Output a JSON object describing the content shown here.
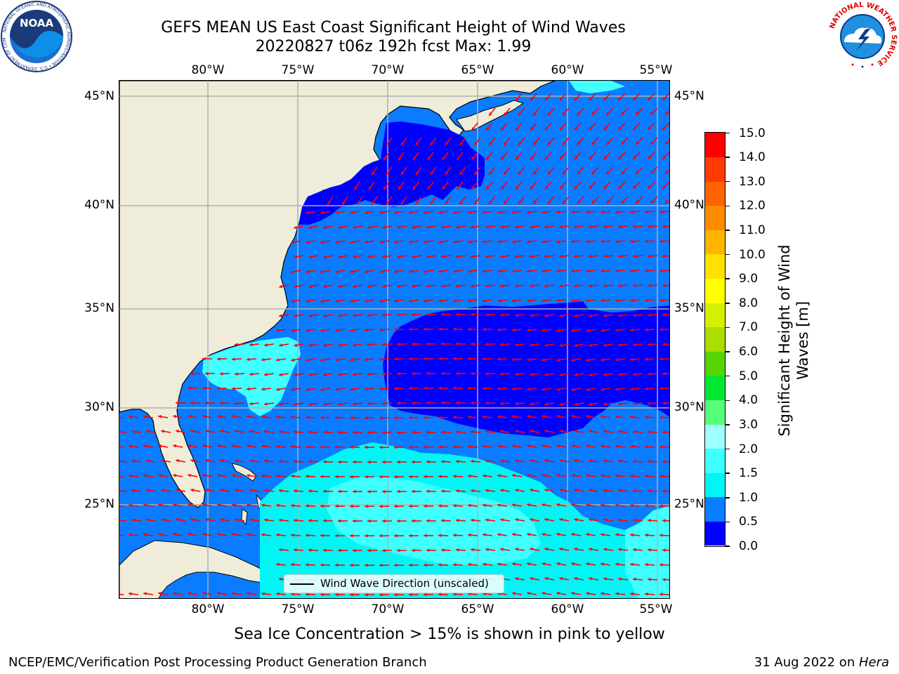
{
  "header": {
    "title_line1": "GEFS MEAN US East Coast Significant Height of Wind Waves",
    "title_line2": "20220827 t06z 192h fcst   Max: 1.99"
  },
  "map": {
    "lon_labels": [
      "80°W",
      "75°W",
      "70°W",
      "65°W",
      "60°W",
      "55°W"
    ],
    "lat_labels": [
      "45°N",
      "40°N",
      "35°N",
      "30°N",
      "25°N"
    ],
    "colors": {
      "land": "#efedd9",
      "band_0_05": "#0000ff",
      "band_05_10": "#0a7cff",
      "band_10_15": "#00f5f5",
      "band_15_20": "#40ffff",
      "band_20_25": "#9fffff",
      "arrow": "#ff0000",
      "grid": "#b0b0b0"
    }
  },
  "colorbar": {
    "title": "Significant Height of Wind Waves [m]",
    "title_line1": "Significant Height of Wind",
    "title_line2": "Waves [m]",
    "tick_labels": [
      "0.0",
      "0.5",
      "1.0",
      "1.5",
      "2.0",
      "3.0",
      "4.0",
      "5.0",
      "6.0",
      "7.0",
      "8.0",
      "9.0",
      "10.0",
      "11.0",
      "12.0",
      "13.0",
      "14.0",
      "15.0"
    ],
    "colors": [
      "#0000ff",
      "#0a7cff",
      "#00f5f5",
      "#40ffff",
      "#9fffff",
      "#55ff7a",
      "#00e832",
      "#55d400",
      "#aadd00",
      "#d4f000",
      "#ffff00",
      "#ffe000",
      "#ffb400",
      "#ff8c00",
      "#ff6400",
      "#ff3c00",
      "#ff0000"
    ]
  },
  "legend": {
    "label": "Wind Wave Direction (unscaled)"
  },
  "note": "Sea Ice Concentration > 15% is shown in pink to yellow",
  "footer": {
    "left": "NCEP/EMC/Verification Post Processing Product Generation Branch",
    "date": "31 Aug 2022 on ",
    "host": "Hera"
  },
  "logos": {
    "noaa_text": "NOAA",
    "noaa_ring": "NATIONAL OCEANIC AND ATMOSPHERIC ADMINISTRATION • U.S. DEPARTMENT OF COMMERCE",
    "nws_ring": "NATIONAL WEATHER SERVICE"
  }
}
